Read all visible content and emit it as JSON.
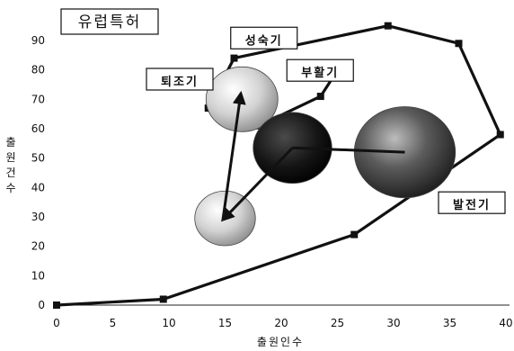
{
  "chart_data": {
    "type": "line",
    "title": "유럽특허",
    "xlabel": "출원인수",
    "ylabel": "출원건수",
    "xlim": [
      0,
      40
    ],
    "ylim": [
      0,
      95
    ],
    "xticks": [
      0,
      5,
      10,
      15,
      20,
      25,
      30,
      35,
      40
    ],
    "yticks": [
      0,
      10,
      20,
      30,
      40,
      50,
      60,
      70,
      80,
      90
    ],
    "grid": false,
    "cycle_path": [
      {
        "x": 0,
        "y": 0
      },
      {
        "x": 9.5,
        "y": 2
      },
      {
        "x": 26.5,
        "y": 24
      },
      {
        "x": 39.5,
        "y": 58
      },
      {
        "x": 35.8,
        "y": 89
      },
      {
        "x": 29.5,
        "y": 95
      },
      {
        "x": 15.8,
        "y": 84
      },
      {
        "x": 13.5,
        "y": 67
      },
      {
        "x": 18,
        "y": 61
      },
      {
        "x": 23.5,
        "y": 71
      },
      {
        "x": 25.2,
        "y": 81
      }
    ],
    "stage_labels": [
      {
        "text": "성숙기",
        "x": 15.5,
        "y": 89
      },
      {
        "text": "부활기",
        "x": 20.5,
        "y": 78
      },
      {
        "text": "퇴조기",
        "x": 8,
        "y": 75
      },
      {
        "text": "발전기",
        "x": 34,
        "y": 33
      }
    ],
    "bubbles": [
      {
        "x": 15,
        "y": 29.5,
        "rx": 2.7,
        "shade": "light",
        "color": "#d0d0d0"
      },
      {
        "x": 16.5,
        "y": 70,
        "rx": 3.2,
        "shade": "light",
        "color": "#d8d8d8"
      },
      {
        "x": 21,
        "y": 53.5,
        "rx": 3.5,
        "shade": "dark",
        "color": "#151515"
      },
      {
        "x": 31,
        "y": 52,
        "rx": 4.5,
        "shade": "medium",
        "color": "#5a5a5a"
      }
    ],
    "arrows": [
      {
        "from": {
          "x": 21,
          "y": 53.5
        },
        "to": {
          "x": 14.8,
          "y": 29
        }
      },
      {
        "from": {
          "x": 14.8,
          "y": 29
        },
        "to": {
          "x": 16.4,
          "y": 72
        }
      }
    ],
    "connectors": [
      {
        "from": {
          "x": 21,
          "y": 53.5
        },
        "to": {
          "x": 31,
          "y": 52
        }
      }
    ]
  }
}
